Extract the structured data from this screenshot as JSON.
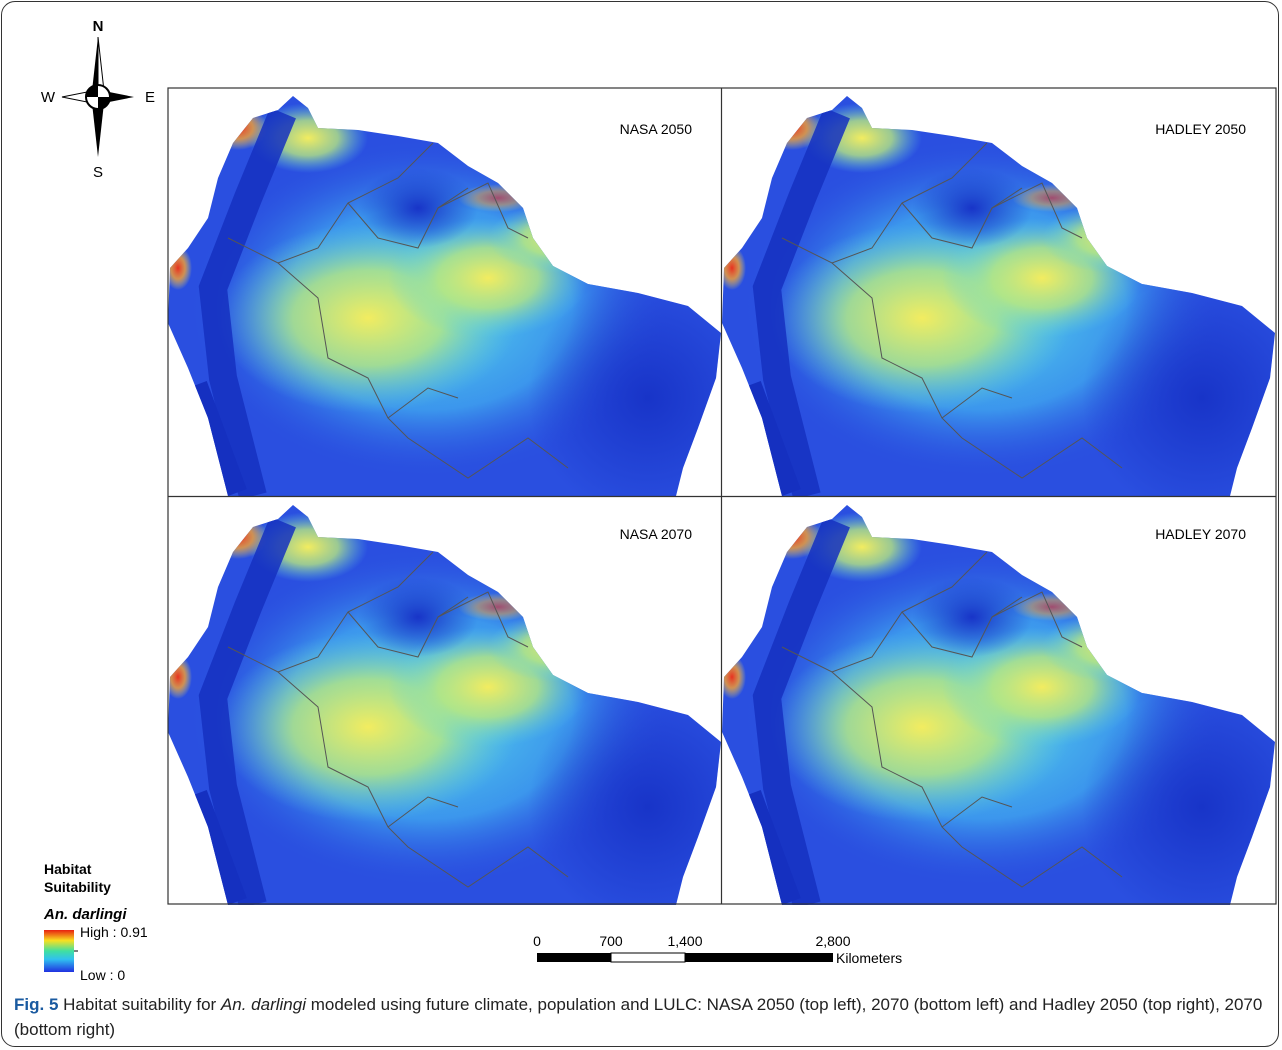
{
  "compass": {
    "north": "N",
    "south": "S",
    "west": "W",
    "east": "E"
  },
  "panels": [
    {
      "label": "NASA 2050"
    },
    {
      "label": "HADLEY 2050"
    },
    {
      "label": "NASA 2070"
    },
    {
      "label": "HADLEY 2070"
    }
  ],
  "legend": {
    "title_lines": [
      "Habitat",
      "Suitability"
    ],
    "species": "An. darlingi",
    "high": "High : 0.91",
    "low": "Low : 0"
  },
  "scale_bar": {
    "ticks": [
      "0",
      "700",
      "1,400",
      "2,800"
    ],
    "unit": "Kilometers"
  },
  "caption": {
    "label": "Fig. 5",
    "text_before": " Habitat suitability for ",
    "species": "An. darlingi",
    "text_after": " modeled using future climate, population and LULC: NASA 2050 (top left), 2070 (bottom left) and Hadley 2050 (top right), 2070 (bottom right)"
  }
}
